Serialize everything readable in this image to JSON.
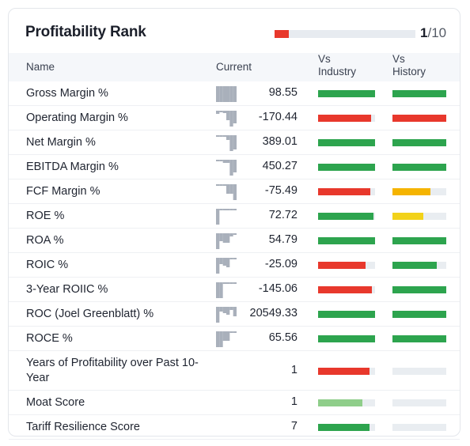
{
  "title": "Profitability Rank",
  "rank": {
    "value": "1",
    "denominator": "/10",
    "fraction": 0.1,
    "color": "#e8382c"
  },
  "columns": {
    "name": "Name",
    "current": "Current",
    "vs_industry": [
      "Vs",
      "Industry"
    ],
    "vs_history": [
      "Vs",
      "History"
    ]
  },
  "colors": {
    "green": "#2da44e",
    "red": "#e8382c",
    "orange": "#f5b400",
    "yellow": "#f2d21a",
    "light_green": "#8fce8a",
    "empty": "#e9edf1",
    "spark": "#a9b0bb"
  },
  "rows": [
    {
      "name": "Gross Margin %",
      "value": "98.55",
      "industry": {
        "fill": 1.0,
        "color": "green"
      },
      "history": {
        "fill": 1.0,
        "color": "green"
      }
    },
    {
      "name": "Operating Margin %",
      "value": "-170.44",
      "industry": {
        "fill": 0.93,
        "color": "red"
      },
      "history": {
        "fill": 1.0,
        "color": "red"
      }
    },
    {
      "name": "Net Margin %",
      "value": "389.01",
      "industry": {
        "fill": 1.0,
        "color": "green"
      },
      "history": {
        "fill": 1.0,
        "color": "green"
      }
    },
    {
      "name": "EBITDA Margin %",
      "value": "450.27",
      "industry": {
        "fill": 1.0,
        "color": "green"
      },
      "history": {
        "fill": 1.0,
        "color": "green"
      }
    },
    {
      "name": "FCF Margin %",
      "value": "-75.49",
      "industry": {
        "fill": 0.91,
        "color": "red"
      },
      "history": {
        "fill": 0.7,
        "color": "orange"
      }
    },
    {
      "name": "ROE %",
      "value": "72.72",
      "industry": {
        "fill": 0.97,
        "color": "green"
      },
      "history": {
        "fill": 0.57,
        "color": "yellow"
      }
    },
    {
      "name": "ROA %",
      "value": "54.79",
      "industry": {
        "fill": 1.0,
        "color": "green"
      },
      "history": {
        "fill": 1.0,
        "color": "green"
      }
    },
    {
      "name": "ROIC %",
      "value": "-25.09",
      "industry": {
        "fill": 0.83,
        "color": "red"
      },
      "history": {
        "fill": 0.83,
        "color": "green"
      }
    },
    {
      "name": "3-Year ROIIC %",
      "value": "-145.06",
      "industry": {
        "fill": 0.94,
        "color": "red"
      },
      "history": {
        "fill": 1.0,
        "color": "green"
      }
    },
    {
      "name": "ROC (Joel Greenblatt) %",
      "value": "20549.33",
      "industry": {
        "fill": 1.0,
        "color": "green"
      },
      "history": {
        "fill": 1.0,
        "color": "green"
      }
    },
    {
      "name": "ROCE %",
      "value": "65.56",
      "industry": {
        "fill": 1.0,
        "color": "green"
      },
      "history": {
        "fill": 1.0,
        "color": "green"
      }
    },
    {
      "name": "Years of Profitability over Past 10-Year",
      "value": "1",
      "industry": {
        "fill": 0.9,
        "color": "red"
      },
      "history": {
        "fill": 0.0,
        "color": "empty"
      }
    },
    {
      "name": "Moat Score",
      "value": "1",
      "industry": {
        "fill": 0.78,
        "color": "light_green"
      },
      "history": {
        "fill": 0.0,
        "color": "empty"
      }
    },
    {
      "name": "Tariff Resilience Score",
      "value": "7",
      "industry": {
        "fill": 0.9,
        "color": "green"
      },
      "history": {
        "fill": 0.0,
        "color": "empty"
      }
    }
  ],
  "sparklines": [
    [
      1,
      1,
      1,
      1,
      1,
      1
    ],
    [
      0.2,
      0.1,
      0.15,
      0.6,
      1,
      0.8
    ],
    [
      0.1,
      0.1,
      0.1,
      0.3,
      1,
      0.9
    ],
    [
      0.1,
      0.1,
      0.2,
      0.2,
      1,
      0.8
    ],
    [
      0.1,
      0.1,
      0.1,
      0.6,
      0.6,
      1
    ],
    [
      1,
      0.1,
      0.1,
      0.1,
      0.1,
      0.1
    ],
    [
      1,
      0.5,
      0.6,
      0.6,
      0.2,
      0.1
    ],
    [
      1,
      0.4,
      0.5,
      0.6,
      0.1,
      0.1
    ],
    [
      1,
      1,
      0.1,
      0.1,
      0.1,
      0.1
    ],
    [
      1,
      0.3,
      0.4,
      0.5,
      0.2,
      0.6
    ],
    [
      1,
      1,
      0.6,
      0.6,
      0.1,
      0.1
    ]
  ]
}
